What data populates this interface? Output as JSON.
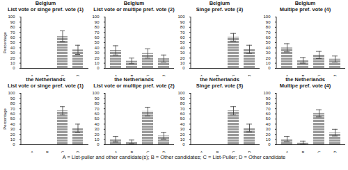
{
  "chart_data": [
    {
      "type": "bar",
      "title": "Belgium",
      "subtitle": "List vote or singe pref. vote (1)",
      "y_label": "Percentage",
      "categories": [
        "A",
        "B",
        "C",
        "D"
      ],
      "values": [
        0,
        0,
        62,
        36
      ],
      "error_low": [
        null,
        null,
        52,
        27
      ],
      "error_high": [
        null,
        null,
        73,
        45
      ],
      "color": "#9a9a9a",
      "ylim": [
        0,
        100
      ],
      "yticks": [
        0,
        10,
        20,
        30,
        40,
        50,
        60,
        70,
        80,
        90,
        100
      ]
    },
    {
      "type": "bar",
      "title": "Belgium",
      "subtitle": "List vote or multipe pref. vote (2)",
      "categories": [
        "A",
        "B",
        "C",
        "D"
      ],
      "values": [
        35,
        14,
        29,
        19
      ],
      "error_low": [
        26,
        9,
        20,
        12
      ],
      "error_high": [
        44,
        20,
        38,
        26
      ],
      "color": "#9a9a9a",
      "ylim": [
        0,
        100
      ],
      "yticks": [
        0,
        10,
        20,
        30,
        40,
        50,
        60,
        70,
        80,
        90,
        100
      ]
    },
    {
      "type": "bar",
      "title": "Belgium",
      "subtitle": "Singe pref. vote (3)",
      "categories": [
        "A",
        "B",
        "C",
        "D"
      ],
      "values": [
        0,
        0,
        61,
        37
      ],
      "error_low": [
        null,
        null,
        53,
        29
      ],
      "error_high": [
        null,
        null,
        68,
        45
      ],
      "color": "#9a9a9a",
      "ylim": [
        0,
        100
      ],
      "yticks": [
        0,
        10,
        20,
        30,
        40,
        50,
        60,
        70,
        80,
        90,
        100
      ]
    },
    {
      "type": "bar",
      "title": "Belgium",
      "subtitle": "Multipe pref. vote (4)",
      "categories": [
        "A",
        "B",
        "C",
        "D"
      ],
      "values": [
        40,
        15,
        26,
        18
      ],
      "error_low": [
        32,
        10,
        19,
        12
      ],
      "error_high": [
        48,
        21,
        33,
        24
      ],
      "color": "#9a9a9a",
      "ylim": [
        0,
        100
      ],
      "yticks": [
        0,
        10,
        20,
        30,
        40,
        50,
        60,
        70,
        80,
        90,
        100
      ]
    },
    {
      "type": "bar",
      "title": "the Netherlands",
      "subtitle": "List vote or singe pref. vote (1)",
      "y_label": "Percentage",
      "categories": [
        "A",
        "B",
        "C",
        "D"
      ],
      "values": [
        0,
        0,
        66,
        32
      ],
      "error_low": [
        null,
        null,
        58,
        24
      ],
      "error_high": [
        null,
        null,
        74,
        40
      ],
      "color": "#9a9a9a",
      "ylim": [
        0,
        100
      ],
      "yticks": [
        0,
        10,
        20,
        30,
        40,
        50,
        60,
        70,
        80,
        90,
        100
      ]
    },
    {
      "type": "bar",
      "title": "the Netherlands",
      "subtitle": "List vote or multipe pref. vote (2)",
      "categories": [
        "A",
        "B",
        "C",
        "D"
      ],
      "values": [
        10,
        5,
        65,
        17
      ],
      "error_low": [
        5,
        2,
        56,
        11
      ],
      "error_high": [
        16,
        9,
        73,
        24
      ],
      "color": "#9a9a9a",
      "ylim": [
        0,
        100
      ],
      "yticks": [
        0,
        10,
        20,
        30,
        40,
        50,
        60,
        70,
        80,
        90,
        100
      ]
    },
    {
      "type": "bar",
      "title": "the Netherlands",
      "subtitle": "Singe pref. vote (3)",
      "categories": [
        "A",
        "B",
        "C",
        "D"
      ],
      "values": [
        0,
        0,
        66,
        32
      ],
      "error_low": [
        null,
        null,
        58,
        25
      ],
      "error_high": [
        null,
        null,
        74,
        40
      ],
      "color": "#9a9a9a",
      "ylim": [
        0,
        100
      ],
      "yticks": [
        0,
        10,
        20,
        30,
        40,
        50,
        60,
        70,
        80,
        90,
        100
      ]
    },
    {
      "type": "bar",
      "title": "the Netherlands",
      "subtitle": "Multipe pref. vote (4)",
      "categories": [
        "A",
        "B",
        "C",
        "D"
      ],
      "values": [
        10,
        3,
        61,
        23
      ],
      "error_low": [
        6,
        1,
        54,
        17
      ],
      "error_high": [
        16,
        7,
        68,
        30
      ],
      "color": "#9a9a9a",
      "ylim": [
        0,
        100
      ],
      "yticks": [
        0,
        10,
        20,
        30,
        40,
        50,
        60,
        70,
        80,
        90,
        100
      ]
    }
  ],
  "note": "A = List-puller and other candidate(s); B = Other candidates; C = List-Puller; D = Other candidate"
}
